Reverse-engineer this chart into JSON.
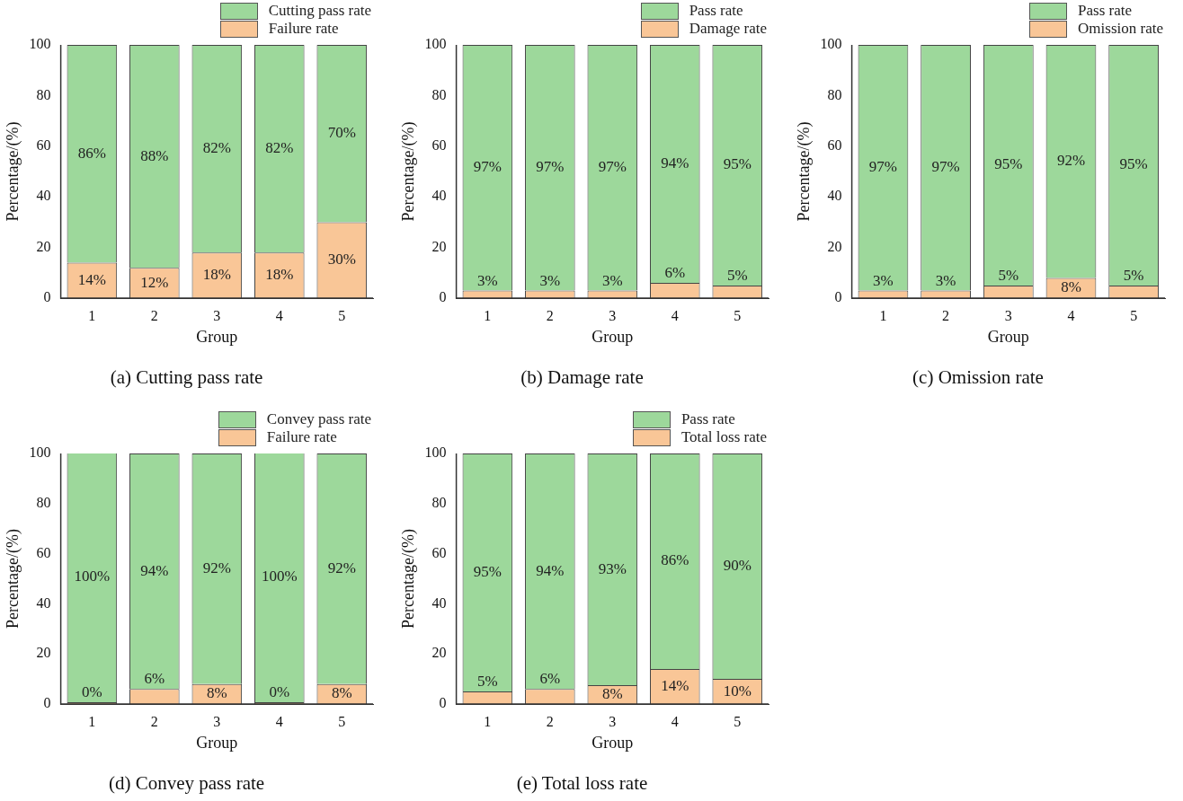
{
  "chart_data": [
    {
      "type": "bar",
      "title": "(a) Cutting pass rate",
      "xlabel": "Group",
      "ylabel": "Percentage/(%)",
      "categories": [
        "1",
        "2",
        "3",
        "4",
        "5"
      ],
      "stacked": true,
      "ylim": [
        0,
        100
      ],
      "yticks": [
        0,
        20,
        40,
        60,
        80,
        100
      ],
      "grid": false,
      "legend": "top right",
      "series": [
        {
          "name": "Failure rate",
          "color": "#f9c697",
          "values": [
            14,
            12,
            18,
            18,
            30
          ],
          "value_labels": [
            "14%",
            "12%",
            "18%",
            "18%",
            "30%"
          ]
        },
        {
          "name": "Cutting pass rate",
          "color": "#9dd89b",
          "values": [
            86,
            88,
            82,
            82,
            70
          ],
          "value_labels": [
            "86%",
            "88%",
            "82%",
            "82%",
            "70%"
          ]
        }
      ]
    },
    {
      "type": "bar",
      "title": "(b) Damage rate",
      "xlabel": "Group",
      "ylabel": "Percentage/(%)",
      "categories": [
        "1",
        "2",
        "3",
        "4",
        "5"
      ],
      "stacked": true,
      "ylim": [
        0,
        100
      ],
      "yticks": [
        0,
        20,
        40,
        60,
        80,
        100
      ],
      "grid": false,
      "legend": "top right",
      "series": [
        {
          "name": "Damage rate",
          "color": "#f9c697",
          "values": [
            3,
            3,
            3,
            6,
            5
          ],
          "value_labels": [
            "3%",
            "3%",
            "3%",
            "6%",
            "5%"
          ]
        },
        {
          "name": "Pass rate",
          "color": "#9dd89b",
          "values": [
            97,
            97,
            97,
            94,
            95
          ],
          "value_labels": [
            "97%",
            "97%",
            "97%",
            "94%",
            "95%"
          ]
        }
      ]
    },
    {
      "type": "bar",
      "title": "(c) Omission rate",
      "xlabel": "Group",
      "ylabel": "Percentage/(%)",
      "categories": [
        "1",
        "2",
        "3",
        "4",
        "5"
      ],
      "stacked": true,
      "ylim": [
        0,
        100
      ],
      "yticks": [
        0,
        20,
        40,
        60,
        80,
        100
      ],
      "grid": false,
      "legend": "top right",
      "series": [
        {
          "name": "Omission rate",
          "color": "#f9c697",
          "values": [
            3,
            3,
            5,
            8,
            5
          ],
          "value_labels": [
            "3%",
            "3%",
            "5%",
            "8%",
            "5%"
          ]
        },
        {
          "name": "Pass rate",
          "color": "#9dd89b",
          "values": [
            97,
            97,
            95,
            92,
            95
          ],
          "value_labels": [
            "97%",
            "97%",
            "95%",
            "92%",
            "95%"
          ]
        }
      ]
    },
    {
      "type": "bar",
      "title": "(d) Convey pass rate",
      "xlabel": "Group",
      "ylabel": "Percentage/(%)",
      "categories": [
        "1",
        "2",
        "3",
        "4",
        "5"
      ],
      "stacked": true,
      "ylim": [
        0,
        100
      ],
      "yticks": [
        0,
        20,
        40,
        60,
        80,
        100
      ],
      "grid": false,
      "legend": "top right",
      "series": [
        {
          "name": "Failure rate",
          "color": "#f9c697",
          "values": [
            0,
            6,
            8,
            0,
            8
          ],
          "value_labels": [
            "0%",
            "6%",
            "8%",
            "0%",
            "8%"
          ]
        },
        {
          "name": "Convey pass rate",
          "color": "#9dd89b",
          "values": [
            100,
            94,
            92,
            100,
            92
          ],
          "value_labels": [
            "100%",
            "94%",
            "92%",
            "100%",
            "92%"
          ]
        }
      ]
    },
    {
      "type": "bar",
      "title": "(e) Total loss rate",
      "xlabel": "Group",
      "ylabel": "Percentage/(%)",
      "categories": [
        "1",
        "2",
        "3",
        "4",
        "5"
      ],
      "stacked": true,
      "ylim": [
        0,
        100
      ],
      "yticks": [
        0,
        20,
        40,
        60,
        80,
        100
      ],
      "grid": false,
      "legend": "top right",
      "series": [
        {
          "name": "Total loss rate",
          "color": "#f9c697",
          "values": [
            5,
            6,
            7.5,
            14,
            10
          ],
          "value_labels": [
            "5%",
            "6%",
            "8%",
            "14%",
            "10%"
          ]
        },
        {
          "name": "Pass rate",
          "color": "#9dd89b",
          "values": [
            95,
            94,
            92.5,
            86,
            90
          ],
          "value_labels": [
            "95%",
            "94%",
            "93%",
            "86%",
            "90%"
          ]
        }
      ]
    }
  ]
}
